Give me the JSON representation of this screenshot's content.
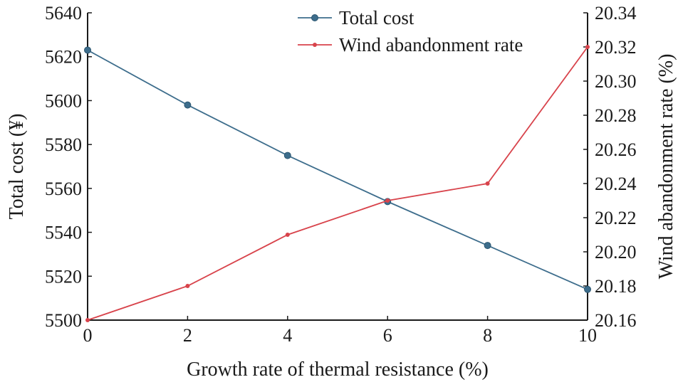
{
  "chart_data": {
    "type": "line",
    "title": "",
    "xlabel": "Growth rate of thermal resistance (%)",
    "ylabel_left": "Total cost (¥)",
    "ylabel_right": "Wind abandonment rate (%)",
    "x": [
      0,
      2,
      4,
      6,
      8,
      10
    ],
    "x_ticks": [
      "0",
      "2",
      "4",
      "6",
      "8",
      "10"
    ],
    "xlim": [
      0,
      10
    ],
    "ylim_left": [
      5500,
      5640
    ],
    "ylim_right": [
      20.16,
      20.34
    ],
    "y_ticks_left": [
      "5500",
      "5520",
      "5540",
      "5560",
      "5580",
      "5600",
      "5620",
      "5640"
    ],
    "y_ticks_right": [
      "20.16",
      "20.18",
      "20.20",
      "20.22",
      "20.24",
      "20.26",
      "20.28",
      "20.30",
      "20.32",
      "20.34"
    ],
    "grid": false,
    "legend_position": "top-center",
    "series": [
      {
        "name": "Total cost",
        "axis": "left",
        "color": "#3d6d8c",
        "values": [
          5623,
          5598,
          5575,
          5554,
          5534,
          5514
        ]
      },
      {
        "name": "Wind abandonment rate",
        "axis": "right",
        "color": "#d8434b",
        "values": [
          20.16,
          20.18,
          20.21,
          20.23,
          20.24,
          20.32
        ]
      }
    ]
  }
}
